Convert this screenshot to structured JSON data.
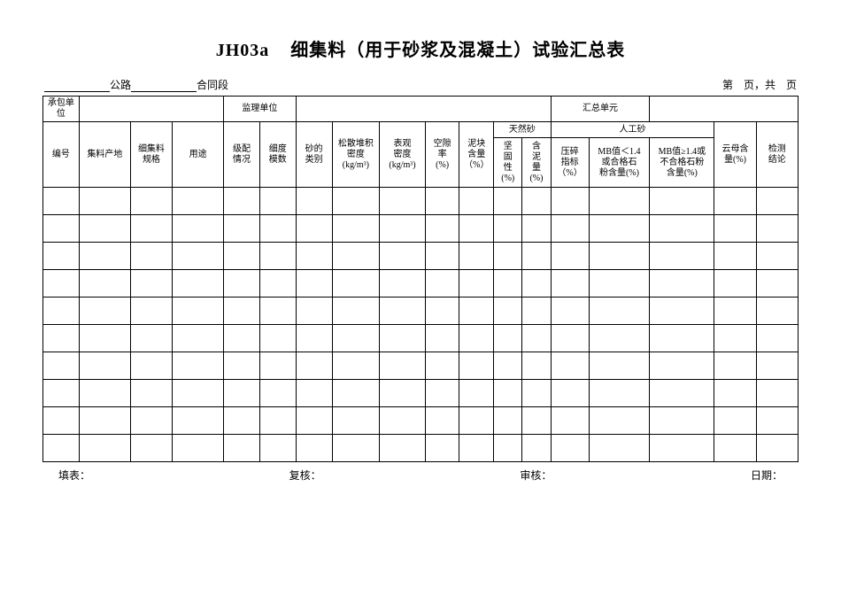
{
  "title_code": "JH03a",
  "title_main": "细集料（用于砂浆及混凝土）试验汇总表",
  "sub_left_1": "公路",
  "sub_left_2": "合同段",
  "page_label": "第　页，共　页",
  "hdr_contractor": "承包单位",
  "hdr_supervisor": "监理单位",
  "hdr_summary_unit": "汇总单元",
  "col_no": "编号",
  "col_origin": "集料产地",
  "col_spec": "细集料\n规格",
  "col_usage": "用途",
  "col_grading": "级配\n情况",
  "col_fineness": "细度\n模数",
  "col_sandtype": "砂的\n类别",
  "col_bulk_density": "松散堆积\n密度\n(kg/m³)",
  "col_apparent_density": "表观\n密度\n(kg/m³)",
  "col_void": "空隙\n率\n(%)",
  "col_mud": "泥块\n含量\n（%）",
  "grp_natural": "天然砂",
  "grp_artificial": "人工砂",
  "col_soundness": "坚\n固\n性\n(%)",
  "col_clay": "含\n泥\n量\n(%)",
  "col_crush": "压碎\n指标\n（%）",
  "col_mb_low": "MB值＜1.4\n或合格石\n粉含量(%)",
  "col_mb_high": "MB值≥1.4或\n不合格石粉\n含量(%)",
  "col_mica": "云母含\n量(%)",
  "col_conclusion": "检测\n结论",
  "ftr_fill": "填表：",
  "ftr_review": "复核：",
  "ftr_check": "审核：",
  "ftr_date": "日期：",
  "data_rows": 10
}
